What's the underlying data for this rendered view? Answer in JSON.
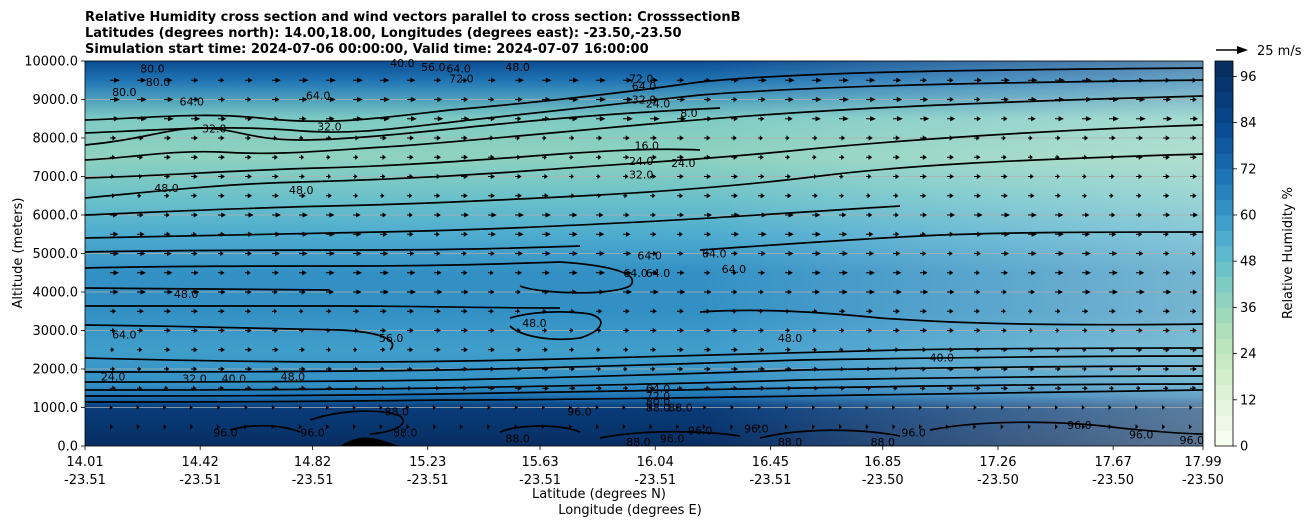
{
  "chart_data": {
    "type": "heatmap",
    "title_lines": [
      "Relative Humidity cross section and wind vectors parallel to cross section: CrosssectionB",
      "Latitudes (degrees north): 14.00,18.00, Longitudes (degrees east): -23.50,-23.50",
      "Simulation start time: 2024-07-06 00:00:00, Valid time: 2024-07-07 16:00:00"
    ],
    "ylabel": "Altitude (meters)",
    "xlabel_lines": [
      "Latitude (degrees N)",
      "Longitude (degrees E)"
    ],
    "colorbar_label": "Relative Humidity %",
    "ylim": [
      0,
      10000
    ],
    "xlim": [
      14.01,
      17.99
    ],
    "y_ticks": [
      {
        "value": 0,
        "label": "0.0"
      },
      {
        "value": 1000,
        "label": "1000.0"
      },
      {
        "value": 2000,
        "label": "2000.0"
      },
      {
        "value": 3000,
        "label": "3000.0"
      },
      {
        "value": 4000,
        "label": "4000.0"
      },
      {
        "value": 5000,
        "label": "5000.0"
      },
      {
        "value": 6000,
        "label": "6000.0"
      },
      {
        "value": 7000,
        "label": "7000.0"
      },
      {
        "value": 8000,
        "label": "8000.0"
      },
      {
        "value": 9000,
        "label": "9000.0"
      },
      {
        "value": 10000,
        "label": "10000.0"
      }
    ],
    "x_ticks": [
      {
        "value": 14.01,
        "lat": "14.01",
        "lon": "-23.51"
      },
      {
        "value": 14.42,
        "lat": "14.42",
        "lon": "-23.51"
      },
      {
        "value": 14.82,
        "lat": "14.82",
        "lon": "-23.51"
      },
      {
        "value": 15.23,
        "lat": "15.23",
        "lon": "-23.51"
      },
      {
        "value": 15.63,
        "lat": "15.63",
        "lon": "-23.51"
      },
      {
        "value": 16.04,
        "lat": "16.04",
        "lon": "-23.51"
      },
      {
        "value": 16.45,
        "lat": "16.45",
        "lon": "-23.51"
      },
      {
        "value": 16.85,
        "lat": "16.85",
        "lon": "-23.50"
      },
      {
        "value": 17.26,
        "lat": "17.26",
        "lon": "-23.50"
      },
      {
        "value": 17.67,
        "lat": "17.67",
        "lon": "-23.50"
      },
      {
        "value": 17.99,
        "lat": "17.99",
        "lon": "-23.50"
      }
    ],
    "colorbar": {
      "min": 0,
      "max": 100,
      "step": 4,
      "ticks": [
        0,
        12,
        24,
        36,
        48,
        60,
        72,
        84,
        96
      ],
      "colors": [
        "#f7fcf0",
        "#eef8e8",
        "#e5f5df",
        "#dcf1d5",
        "#d2eecb",
        "#c7eac2",
        "#bbe5bc",
        "#addfbb",
        "#9fd9bb",
        "#8fd2bf",
        "#7ecbc4",
        "#6dc2c9",
        "#5db8cd",
        "#4eaccf",
        "#409ecb",
        "#3390c4",
        "#2882bc",
        "#1f74b4",
        "#1766aa",
        "#10599f",
        "#0a4d92",
        "#084486",
        "#083c7a",
        "#08356e",
        "#082e62"
      ]
    },
    "quiver_key": {
      "label": "25 m/s",
      "value": 25
    },
    "rh_profile": [
      {
        "alt": 0,
        "rh": 97
      },
      {
        "alt": 500,
        "rh": 95
      },
      {
        "alt": 1000,
        "rh": 90
      },
      {
        "alt": 1300,
        "rh": 70
      },
      {
        "alt": 1600,
        "rh": 62
      },
      {
        "alt": 2500,
        "rh": 58
      },
      {
        "alt": 3500,
        "rh": 60
      },
      {
        "alt": 4500,
        "rh": 63
      },
      {
        "alt": 5500,
        "rh": 52
      },
      {
        "alt": 6500,
        "rh": 44
      },
      {
        "alt": 7500,
        "rh": 36
      },
      {
        "alt": 8500,
        "rh": 42
      },
      {
        "alt": 9500,
        "rh": 70
      },
      {
        "alt": 10000,
        "rh": 80
      }
    ],
    "contour_labels": [
      {
        "text": "80.0",
        "x": 14.25,
        "y": 9800
      },
      {
        "text": "80.0",
        "x": 14.27,
        "y": 9450
      },
      {
        "text": "80.0",
        "x": 14.15,
        "y": 9200
      },
      {
        "text": "64.0",
        "x": 14.39,
        "y": 8950
      },
      {
        "text": "32.0",
        "x": 14.47,
        "y": 8250
      },
      {
        "text": "32.0",
        "x": 14.88,
        "y": 8300
      },
      {
        "text": "64.0",
        "x": 14.84,
        "y": 9100
      },
      {
        "text": "40.0",
        "x": 15.14,
        "y": 9950
      },
      {
        "text": "56.0",
        "x": 15.25,
        "y": 9850
      },
      {
        "text": "64.0",
        "x": 15.34,
        "y": 9800
      },
      {
        "text": "48.0",
        "x": 15.55,
        "y": 9850
      },
      {
        "text": "72.0",
        "x": 15.35,
        "y": 9550
      },
      {
        "text": "72.0",
        "x": 15.99,
        "y": 9550
      },
      {
        "text": "64.0",
        "x": 16.0,
        "y": 9350
      },
      {
        "text": "32.0",
        "x": 16.0,
        "y": 9000
      },
      {
        "text": "24.0",
        "x": 16.05,
        "y": 8900
      },
      {
        "text": "8.0",
        "x": 16.16,
        "y": 8650
      },
      {
        "text": "16.0",
        "x": 16.01,
        "y": 7800
      },
      {
        "text": "24.0",
        "x": 15.99,
        "y": 7400
      },
      {
        "text": "24.0",
        "x": 16.14,
        "y": 7350
      },
      {
        "text": "32.0",
        "x": 15.99,
        "y": 7050
      },
      {
        "text": "48.0",
        "x": 14.3,
        "y": 6700
      },
      {
        "text": "48.0",
        "x": 14.78,
        "y": 6650
      },
      {
        "text": "64.0",
        "x": 16.02,
        "y": 4950
      },
      {
        "text": "64.0",
        "x": 16.25,
        "y": 5000
      },
      {
        "text": "64.0",
        "x": 16.32,
        "y": 4600
      },
      {
        "text": "64.0",
        "x": 15.97,
        "y": 4500
      },
      {
        "text": "64.0",
        "x": 16.05,
        "y": 4500
      },
      {
        "text": "48.0",
        "x": 14.37,
        "y": 3950
      },
      {
        "text": "48.0",
        "x": 15.61,
        "y": 3200
      },
      {
        "text": "56.0",
        "x": 15.1,
        "y": 2800
      },
      {
        "text": "64.0",
        "x": 14.15,
        "y": 2900
      },
      {
        "text": "48.0",
        "x": 16.52,
        "y": 2800
      },
      {
        "text": "40.0",
        "x": 17.06,
        "y": 2300
      },
      {
        "text": "24.0",
        "x": 14.11,
        "y": 1800
      },
      {
        "text": "32.0",
        "x": 14.4,
        "y": 1750
      },
      {
        "text": "40.0",
        "x": 14.54,
        "y": 1750
      },
      {
        "text": "48.0",
        "x": 14.75,
        "y": 1800
      },
      {
        "text": "64.0",
        "x": 16.05,
        "y": 1500
      },
      {
        "text": "72.0",
        "x": 16.05,
        "y": 1300
      },
      {
        "text": "80.0",
        "x": 16.05,
        "y": 1150
      },
      {
        "text": "88.0",
        "x": 16.05,
        "y": 1000
      },
      {
        "text": "88.0",
        "x": 16.13,
        "y": 1000
      },
      {
        "text": "88.0",
        "x": 15.12,
        "y": 900
      },
      {
        "text": "96.0",
        "x": 14.51,
        "y": 350
      },
      {
        "text": "96.0",
        "x": 14.82,
        "y": 350
      },
      {
        "text": "88.0",
        "x": 15.15,
        "y": 350
      },
      {
        "text": "88.0",
        "x": 15.55,
        "y": 200
      },
      {
        "text": "88.0",
        "x": 15.98,
        "y": 100
      },
      {
        "text": "96.0",
        "x": 16.1,
        "y": 200
      },
      {
        "text": "96.0",
        "x": 16.2,
        "y": 400
      },
      {
        "text": "96.0",
        "x": 15.77,
        "y": 900
      },
      {
        "text": "96.0",
        "x": 16.4,
        "y": 450
      },
      {
        "text": "88.0",
        "x": 16.52,
        "y": 100
      },
      {
        "text": "88.0",
        "x": 16.85,
        "y": 100
      },
      {
        "text": "96.0",
        "x": 16.96,
        "y": 350
      },
      {
        "text": "96.0",
        "x": 17.55,
        "y": 550
      },
      {
        "text": "96.0",
        "x": 17.77,
        "y": 300
      },
      {
        "text": "96.0",
        "x": 17.95,
        "y": 150
      }
    ]
  }
}
